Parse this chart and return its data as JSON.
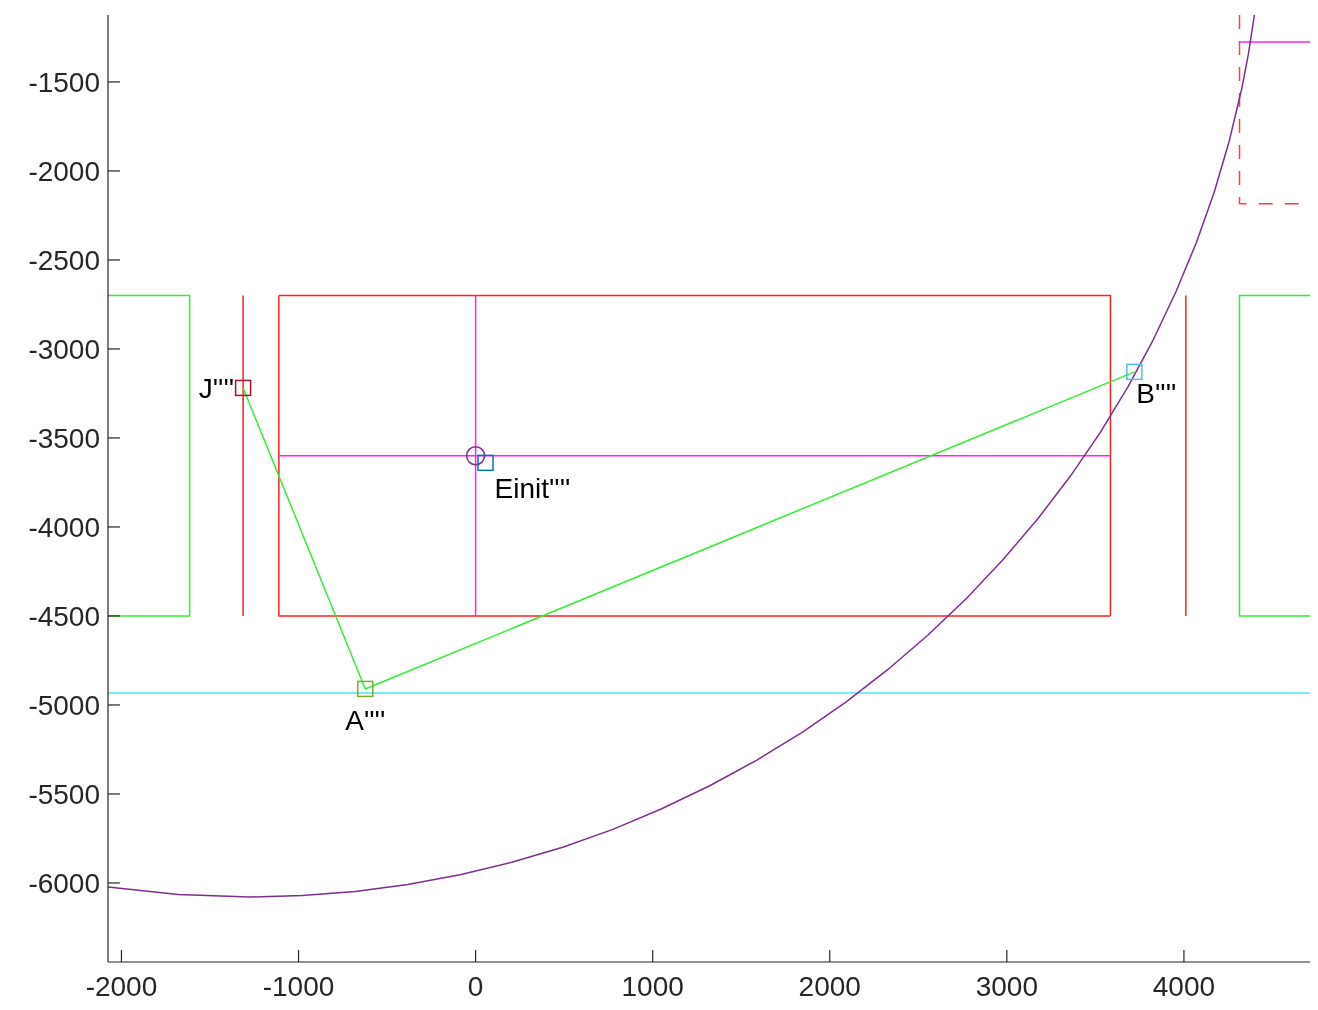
{
  "chart_data": {
    "type": "line",
    "xlim": [
      -2076,
      4712
    ],
    "ylim": [
      -6444,
      -1124
    ],
    "xticks": [
      -2000,
      -1000,
      0,
      1000,
      2000,
      3000,
      4000
    ],
    "yticks": [
      -1500,
      -2000,
      -2500,
      -3000,
      -3500,
      -4000,
      -4500,
      -5000,
      -5500,
      -6000
    ],
    "series": [
      {
        "color": "#33ee33",
        "x": [
          -2076,
          -1615,
          -1615,
          -2076
        ],
        "values": [
          -2700,
          -2700,
          -4500,
          -4500
        ]
      },
      {
        "color": "#ff2020",
        "x": [
          -1313,
          -1313
        ],
        "values": [
          -2700,
          -4500
        ]
      },
      {
        "color": "#ff2020",
        "x": [
          -1111,
          3585,
          3585
        ],
        "values": [
          -2700,
          -2700,
          -4500
        ]
      },
      {
        "color": "#ff2020",
        "x": [
          3585,
          -1111,
          -1111
        ],
        "values": [
          -4500,
          -4500,
          -2700
        ]
      },
      {
        "color": "#ff2020",
        "x": [
          4011,
          4011
        ],
        "values": [
          -2700,
          -4500
        ]
      },
      {
        "color": "#ff20ff",
        "x": [
          0,
          0
        ],
        "values": [
          -2700,
          -4500
        ]
      },
      {
        "color": "#ff20ff",
        "x": [
          -1111,
          3585
        ],
        "values": [
          -3600,
          -3600
        ]
      },
      {
        "color": "#33ee33",
        "x": [
          4712,
          4314,
          4314,
          4712
        ],
        "values": [
          -2700,
          -2700,
          -4500,
          -4500
        ]
      },
      {
        "color": "#ff4040",
        "line_style": "dashed",
        "x": [
          4314,
          4314,
          4668
        ],
        "values": [
          -1124,
          -2185,
          -2185
        ]
      },
      {
        "color": "#ff20ff",
        "x": [
          4314,
          4712
        ],
        "values": [
          -1275,
          -1275
        ]
      },
      {
        "color": "#33ee33",
        "x": [
          -1313,
          -623,
          3720
        ],
        "values": [
          -3219,
          -4910,
          -3129
        ]
      },
      {
        "color": "#7e2f8e",
        "x": [
          -2076,
          -1679,
          -1279,
          -979,
          -680,
          -383,
          -88,
          204,
          492,
          775,
          1051,
          1322,
          1586,
          1842,
          2089,
          2327,
          2555,
          2773,
          2979,
          3174,
          3357,
          3527,
          3683,
          3826,
          3955,
          4070,
          4171,
          4256,
          4326,
          4364,
          4398
        ],
        "values": [
          -6023,
          -6065,
          -6079,
          -6071,
          -6048,
          -6009,
          -5954,
          -5884,
          -5799,
          -5699,
          -5583,
          -5454,
          -5311,
          -5155,
          -4985,
          -4802,
          -4607,
          -4401,
          -4183,
          -3955,
          -3717,
          -3470,
          -3214,
          -2950,
          -2679,
          -2403,
          -2120,
          -1832,
          -1540,
          -1344,
          -1124
        ]
      },
      {
        "type": "scatter",
        "marker": "circle",
        "color": "#7e2f8e",
        "x": [
          0
        ],
        "values": [
          -3600
        ]
      },
      {
        "type": "scatter",
        "marker": "square",
        "color": "#a2142f",
        "x": [
          -1313
        ],
        "values": [
          -3219
        ]
      },
      {
        "type": "scatter",
        "marker": "square",
        "color": "#0072bd",
        "x": [
          56
        ],
        "values": [
          -3640
        ]
      },
      {
        "type": "scatter",
        "marker": "square",
        "color": "#4dbeee",
        "x": [
          3720
        ],
        "values": [
          -3129
        ]
      },
      {
        "type": "scatter",
        "marker": "square",
        "color": "#77ac30",
        "x": [
          -623
        ],
        "values": [
          -4910
        ]
      }
    ],
    "ref_lines": [
      {
        "axis": "y",
        "value": -4933,
        "color": "#4de8e8"
      }
    ],
    "annotations": [
      {
        "text": "J''''",
        "x": -1313,
        "y": -3219
      },
      {
        "text": "Einit''''",
        "x": 56,
        "y": -3640
      },
      {
        "text": "B''''",
        "x": 3720,
        "y": -3129
      },
      {
        "text": "A''''",
        "x": -623,
        "y": -4910
      }
    ]
  }
}
